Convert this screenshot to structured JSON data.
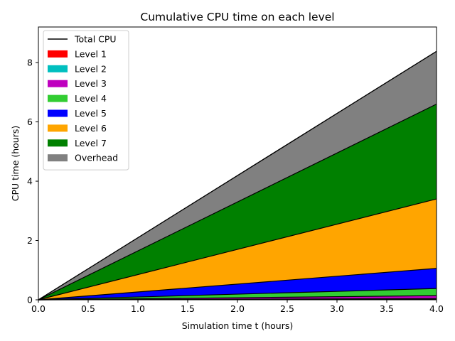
{
  "chart_data": {
    "type": "area",
    "title": "Cumulative CPU time on each level",
    "xlabel": "Simulation time t (hours)",
    "ylabel": "CPU time (hours)",
    "xlim": [
      0,
      4
    ],
    "ylim": [
      0,
      9.2
    ],
    "x_ticks": [
      0.0,
      0.5,
      1.0,
      1.5,
      2.0,
      2.5,
      3.0,
      3.5,
      4.0
    ],
    "x_tick_labels": [
      "0.0",
      "0.5",
      "1.0",
      "1.5",
      "2.0",
      "2.5",
      "3.0",
      "3.5",
      "4.0"
    ],
    "y_ticks": [
      0,
      2,
      4,
      6,
      8
    ],
    "y_tick_labels": [
      "0",
      "2",
      "4",
      "6",
      "8"
    ],
    "grid": false,
    "legend_position": "top-left",
    "x": [
      0,
      4
    ],
    "series": [
      {
        "name": "Level 1",
        "color": "#ff0000",
        "values": [
          0,
          0.02
        ]
      },
      {
        "name": "Level 2",
        "color": "#00bfbf",
        "values": [
          0,
          0.02
        ]
      },
      {
        "name": "Level 3",
        "color": "#bf00bf",
        "values": [
          0,
          0.1
        ]
      },
      {
        "name": "Level 4",
        "color": "#32cd32",
        "values": [
          0,
          0.24
        ]
      },
      {
        "name": "Level 5",
        "color": "#0000ff",
        "values": [
          0,
          0.68
        ]
      },
      {
        "name": "Level 6",
        "color": "#ffa500",
        "values": [
          0,
          2.34
        ]
      },
      {
        "name": "Level 7",
        "color": "#008000",
        "values": [
          0,
          3.2
        ]
      },
      {
        "name": "Overhead",
        "color": "#808080",
        "values": [
          0,
          1.78
        ]
      }
    ],
    "total_line": {
      "name": "Total CPU",
      "color": "#000000",
      "values": [
        0,
        8.38
      ]
    }
  }
}
